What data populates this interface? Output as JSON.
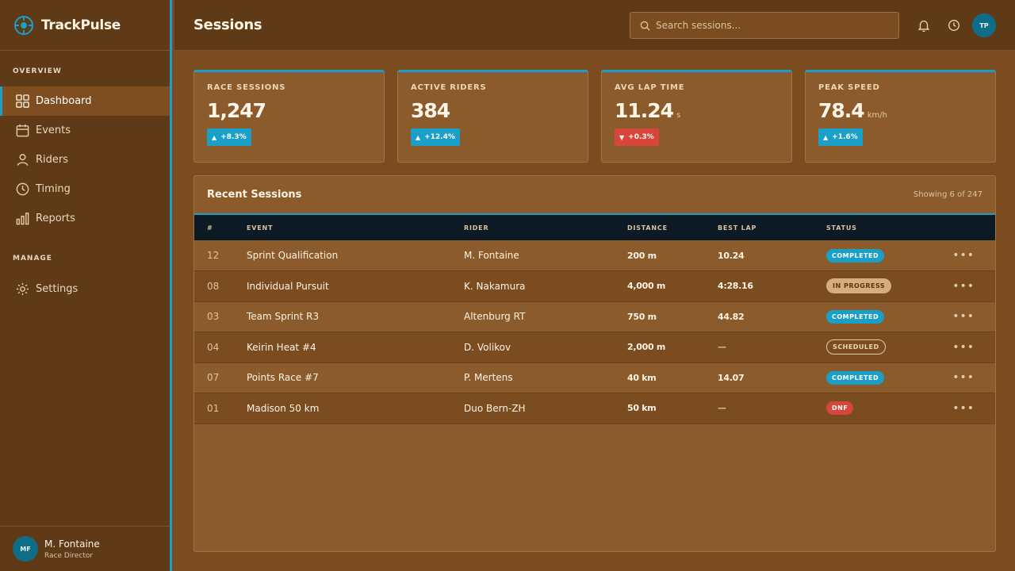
{
  "app": {
    "name": "TrackPulse"
  },
  "sidebar": {
    "sections": [
      "OVERVIEW",
      "MANAGE"
    ],
    "items": [
      {
        "label": "Dashboard",
        "icon": "grid-icon",
        "active": true
      },
      {
        "label": "Events",
        "icon": "calendar-icon"
      },
      {
        "label": "Riders",
        "icon": "user-icon"
      },
      {
        "label": "Timing",
        "icon": "clock-icon"
      },
      {
        "label": "Reports",
        "icon": "bar-chart-icon"
      }
    ],
    "manage_items": [
      {
        "label": "Settings",
        "icon": "gear-icon"
      }
    ],
    "user": {
      "initials": "MF",
      "name": "M. Fontaine",
      "role": "Race Director"
    }
  },
  "header": {
    "title": "Sessions",
    "search": {
      "placeholder": "Search sessions...",
      "value": ""
    },
    "avatar_initials": "TP"
  },
  "kpis": [
    {
      "label": "RACE SESSIONS",
      "value": "1,247",
      "unit": "",
      "delta": "+8.3%",
      "direction": "up"
    },
    {
      "label": "ACTIVE RIDERS",
      "value": "384",
      "unit": "",
      "delta": "+12.4%",
      "direction": "up"
    },
    {
      "label": "AVG LAP TIME",
      "value": "11.24",
      "unit": "s",
      "delta": "+0.3%",
      "direction": "down"
    },
    {
      "label": "PEAK SPEED",
      "value": "78.4",
      "unit": "km/h",
      "delta": "+1.6%",
      "direction": "up"
    }
  ],
  "table": {
    "title": "Recent Sessions",
    "count": "Showing 6 of 247",
    "columns": [
      "#",
      "EVENT",
      "RIDER",
      "DISTANCE",
      "BEST LAP",
      "STATUS"
    ],
    "rows": [
      {
        "id": "12",
        "event": "Sprint Qualification",
        "rider": "M. Fontaine",
        "distance": "200 m",
        "best_lap": "10.24",
        "status": "COMPLETED"
      },
      {
        "id": "08",
        "event": "Individual Pursuit",
        "rider": "K. Nakamura",
        "distance": "4,000 m",
        "best_lap": "4:28.16",
        "status": "IN PROGRESS"
      },
      {
        "id": "03",
        "event": "Team Sprint R3",
        "rider": "Altenburg RT",
        "distance": "750 m",
        "best_lap": "44.82",
        "status": "COMPLETED"
      },
      {
        "id": "04",
        "event": "Keirin Heat #4",
        "rider": "D. Volikov",
        "distance": "2,000 m",
        "best_lap": "—",
        "status": "SCHEDULED"
      },
      {
        "id": "07",
        "event": "Points Race #7",
        "rider": "P. Mertens",
        "distance": "40 km",
        "best_lap": "14.07",
        "status": "COMPLETED"
      },
      {
        "id": "01",
        "event": "Madison 50 km",
        "rider": "Duo Bern-ZH",
        "distance": "50 km",
        "best_lap": "—",
        "status": "DNF"
      }
    ],
    "row_action": "•••"
  },
  "colors": {
    "accent": "#1aa0c8",
    "danger": "#d8453b",
    "sidebar": "#5e3a16",
    "background": "#7a4c20",
    "card": "#8c5b2b",
    "table_header": "#0c1a26"
  }
}
